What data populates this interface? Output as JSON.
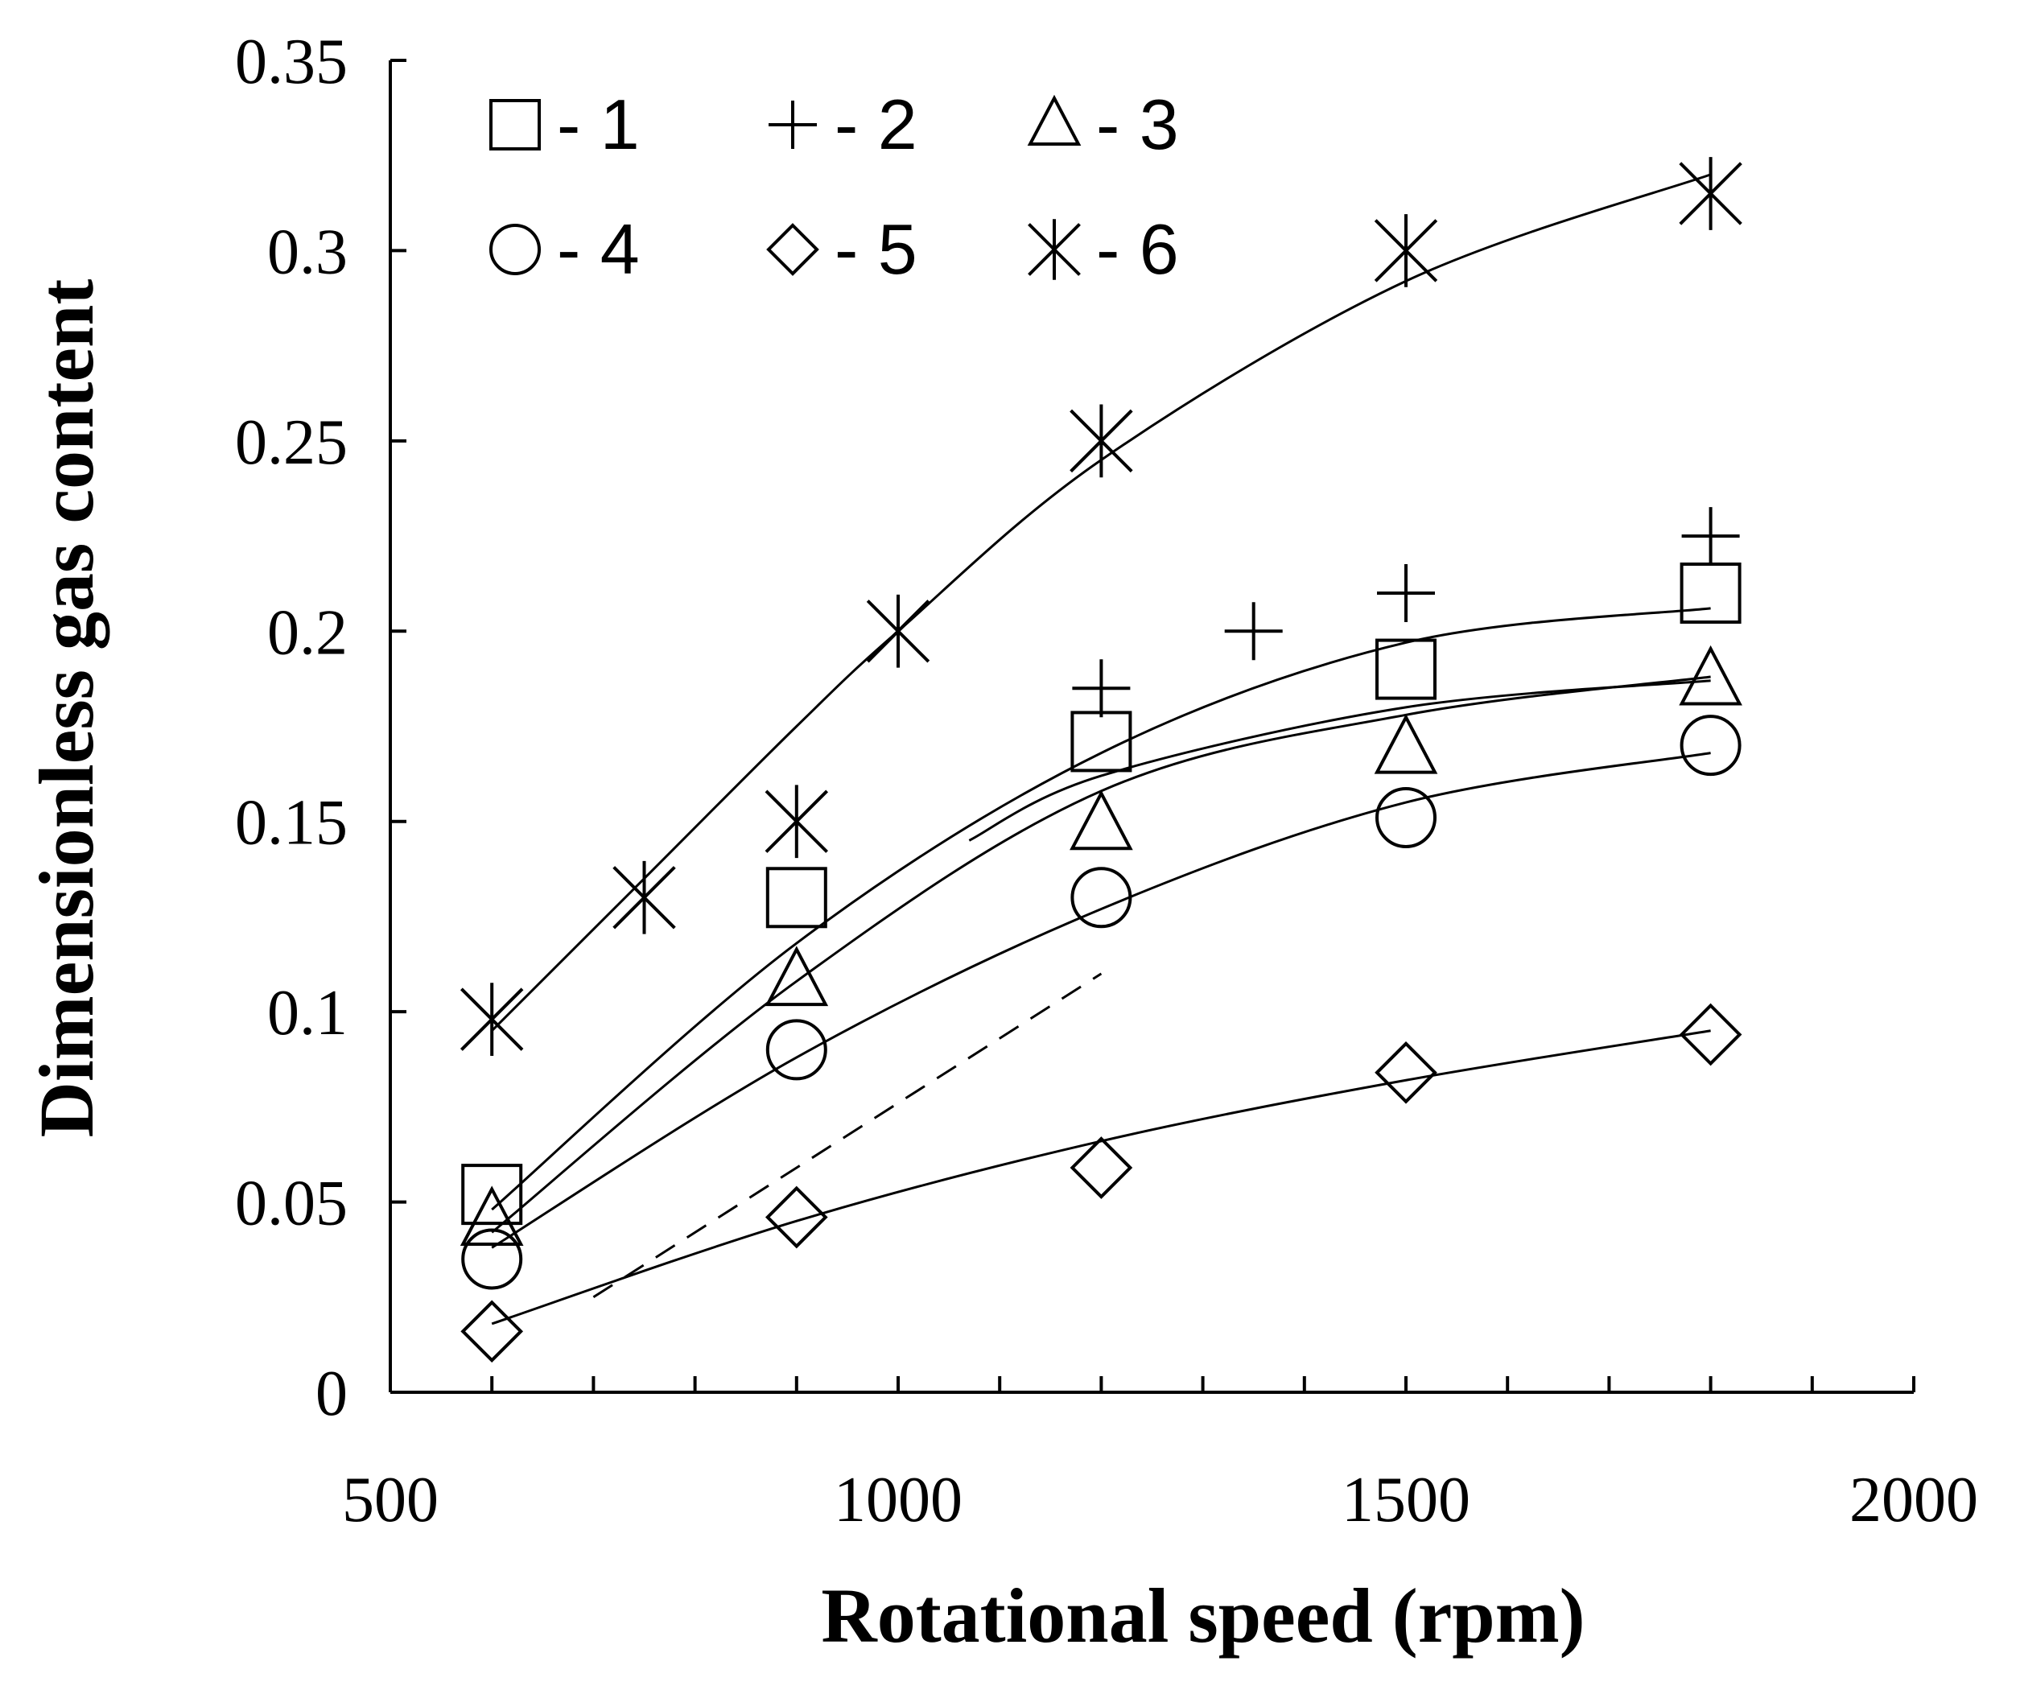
{
  "chart_data": {
    "type": "scatter",
    "title": "",
    "xlabel": "Rotational speed (rpm)",
    "ylabel": "Dimensionless gas content",
    "xlim": [
      500,
      2000
    ],
    "ylim": [
      0,
      0.35
    ],
    "x_ticks": [
      500,
      1000,
      1500,
      2000
    ],
    "y_ticks": [
      0,
      0.05,
      0.1,
      0.15,
      0.2,
      0.25,
      0.3,
      0.35
    ],
    "y_tick_labels": [
      "0",
      "0.05",
      "0.1",
      "0.15",
      "0.2",
      "0.25",
      "0.3",
      "0.35"
    ],
    "grid": false,
    "legend_position": "top-left",
    "series": [
      {
        "name": "1",
        "label": "- 1",
        "marker": "square",
        "points": [
          [
            600,
            0.052
          ],
          [
            900,
            0.13
          ],
          [
            1200,
            0.171
          ],
          [
            1500,
            0.19
          ],
          [
            1800,
            0.21
          ]
        ],
        "fit": [
          [
            600,
            0.048
          ],
          [
            900,
            0.118
          ],
          [
            1200,
            0.168
          ],
          [
            1500,
            0.197
          ],
          [
            1800,
            0.206
          ]
        ]
      },
      {
        "name": "2",
        "label": "- 2",
        "marker": "plus",
        "points": [
          [
            1200,
            0.185
          ],
          [
            1350,
            0.2
          ],
          [
            1500,
            0.21
          ],
          [
            1800,
            0.225
          ]
        ],
        "fit": []
      },
      {
        "name": "3",
        "label": "- 3",
        "marker": "triangle",
        "points": [
          [
            600,
            0.045
          ],
          [
            900,
            0.108
          ],
          [
            1200,
            0.149
          ],
          [
            1500,
            0.169
          ],
          [
            1800,
            0.187
          ]
        ],
        "fit": [
          [
            600,
            0.042
          ],
          [
            900,
            0.108
          ],
          [
            1200,
            0.158
          ],
          [
            1500,
            0.178
          ],
          [
            1800,
            0.188
          ]
        ]
      },
      {
        "name": "4",
        "label": "- 4",
        "marker": "circle",
        "points": [
          [
            600,
            0.035
          ],
          [
            900,
            0.09
          ],
          [
            1200,
            0.13
          ],
          [
            1500,
            0.151
          ],
          [
            1800,
            0.17
          ]
        ],
        "fit": [
          [
            600,
            0.038
          ],
          [
            900,
            0.088
          ],
          [
            1200,
            0.127
          ],
          [
            1500,
            0.155
          ],
          [
            1800,
            0.168
          ]
        ]
      },
      {
        "name": "5",
        "label": "- 5",
        "marker": "diamond",
        "points": [
          [
            600,
            0.016
          ],
          [
            900,
            0.046
          ],
          [
            1200,
            0.059
          ],
          [
            1500,
            0.084
          ],
          [
            1800,
            0.094
          ]
        ],
        "fit": [
          [
            600,
            0.018
          ],
          [
            900,
            0.045
          ],
          [
            1200,
            0.066
          ],
          [
            1500,
            0.082
          ],
          [
            1800,
            0.095
          ]
        ]
      },
      {
        "name": "6",
        "label": "- 6",
        "marker": "asterisk",
        "points": [
          [
            600,
            0.098
          ],
          [
            750,
            0.13
          ],
          [
            900,
            0.15
          ],
          [
            1000,
            0.2
          ],
          [
            1200,
            0.25
          ],
          [
            1500,
            0.3
          ],
          [
            1800,
            0.315
          ]
        ],
        "fit": [
          [
            600,
            0.095
          ],
          [
            750,
            0.135
          ],
          [
            900,
            0.175
          ],
          [
            1000,
            0.2
          ],
          [
            1200,
            0.245
          ],
          [
            1500,
            0.292
          ],
          [
            1800,
            0.32
          ]
        ]
      }
    ],
    "extra_lines": [
      {
        "name": "gray-fit",
        "style": "solid-gray",
        "points": [
          [
            1070,
            0.145
          ],
          [
            1200,
            0.162
          ],
          [
            1500,
            0.18
          ],
          [
            1800,
            0.187
          ]
        ]
      },
      {
        "name": "dashed-fit",
        "style": "dashed",
        "points": [
          [
            700,
            0.025
          ],
          [
            1200,
            0.11
          ]
        ]
      }
    ]
  }
}
